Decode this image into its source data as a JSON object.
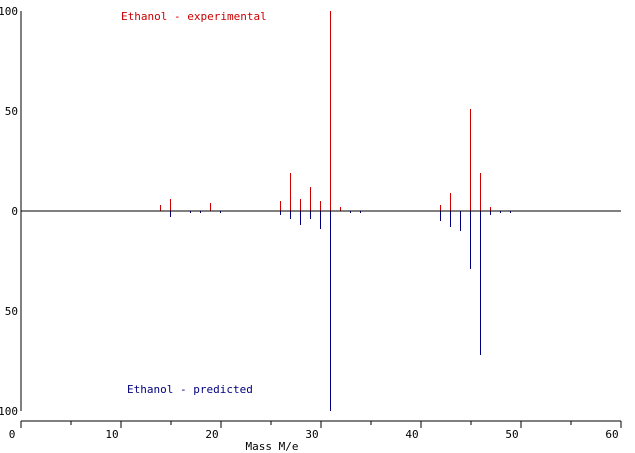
{
  "chart_data": {
    "type": "bar",
    "style": "mirrored stick spectrum",
    "xlabel": "Mass M/e",
    "xlim": [
      0,
      60
    ],
    "ylim": [
      -100,
      100
    ],
    "x_ticks": [
      0,
      10,
      20,
      30,
      40,
      50,
      60
    ],
    "y_tick_labels": [
      "100",
      "50",
      "0",
      "50",
      "100"
    ],
    "y_tick_values": [
      100,
      50,
      0,
      -50,
      -100
    ],
    "grid": false,
    "series": [
      {
        "name": "Ethanol - experimental",
        "direction": "up",
        "color": "#cc0000",
        "points": [
          {
            "x": 14,
            "y": 3
          },
          {
            "x": 15,
            "y": 6
          },
          {
            "x": 19,
            "y": 4
          },
          {
            "x": 26,
            "y": 5
          },
          {
            "x": 27,
            "y": 19
          },
          {
            "x": 28,
            "y": 6
          },
          {
            "x": 29,
            "y": 12
          },
          {
            "x": 30,
            "y": 5
          },
          {
            "x": 31,
            "y": 100
          },
          {
            "x": 32,
            "y": 2
          },
          {
            "x": 42,
            "y": 3
          },
          {
            "x": 43,
            "y": 9
          },
          {
            "x": 45,
            "y": 51
          },
          {
            "x": 46,
            "y": 19
          },
          {
            "x": 47,
            "y": 2
          }
        ]
      },
      {
        "name": "Ethanol - predicted",
        "direction": "down",
        "color": "#00007f",
        "points": [
          {
            "x": 15,
            "y": 3
          },
          {
            "x": 17,
            "y": 1
          },
          {
            "x": 18,
            "y": 1
          },
          {
            "x": 20,
            "y": 1
          },
          {
            "x": 26,
            "y": 2
          },
          {
            "x": 27,
            "y": 4
          },
          {
            "x": 28,
            "y": 7
          },
          {
            "x": 29,
            "y": 4
          },
          {
            "x": 30,
            "y": 9
          },
          {
            "x": 31,
            "y": 100
          },
          {
            "x": 33,
            "y": 1
          },
          {
            "x": 34,
            "y": 1
          },
          {
            "x": 42,
            "y": 5
          },
          {
            "x": 43,
            "y": 8
          },
          {
            "x": 44,
            "y": 10
          },
          {
            "x": 45,
            "y": 29
          },
          {
            "x": 46,
            "y": 72
          },
          {
            "x": 47,
            "y": 2
          },
          {
            "x": 48,
            "y": 1
          },
          {
            "x": 49,
            "y": 1
          }
        ]
      }
    ]
  },
  "legend": {
    "experimental_label": "Ethanol - experimental",
    "predicted_label": "Ethanol - predicted",
    "experimental_color": "#cc0000",
    "predicted_color": "#00007f"
  }
}
